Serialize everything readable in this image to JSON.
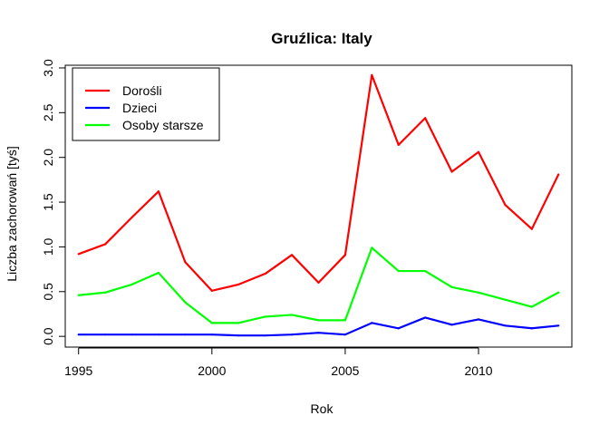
{
  "chart_data": {
    "type": "line",
    "title": "Gruźlica: Italy",
    "xlabel": "Rok",
    "ylabel": "Liczba zachorowań [tyś]",
    "xlim": [
      1994.5,
      2013.5
    ],
    "ylim": [
      -0.12,
      3.03
    ],
    "x_ticks": [
      1995,
      2000,
      2005,
      2010
    ],
    "y_ticks": [
      "0.0",
      "0.5",
      "1.0",
      "1.5",
      "2.0",
      "2.5",
      "3.0"
    ],
    "grid": false,
    "legend_position": "top-left",
    "x": [
      1995,
      1996,
      1997,
      1998,
      1999,
      2000,
      2001,
      2002,
      2003,
      2004,
      2005,
      2006,
      2007,
      2008,
      2009,
      2010,
      2011,
      2012,
      2013
    ],
    "series": [
      {
        "name": "Dorośli",
        "color": "#ff0000",
        "values": [
          0.92,
          1.03,
          1.33,
          1.62,
          0.83,
          0.51,
          0.58,
          0.7,
          0.91,
          0.6,
          0.91,
          2.92,
          2.14,
          2.44,
          1.84,
          2.06,
          1.47,
          1.2,
          1.81
        ]
      },
      {
        "name": "Dzieci",
        "color": "#0000ff",
        "values": [
          0.02,
          0.02,
          0.02,
          0.02,
          0.02,
          0.02,
          0.01,
          0.01,
          0.02,
          0.04,
          0.02,
          0.15,
          0.09,
          0.21,
          0.13,
          0.19,
          0.12,
          0.09,
          0.12
        ]
      },
      {
        "name": "Osoby starsze",
        "color": "#00ff00",
        "values": [
          0.46,
          0.49,
          0.58,
          0.71,
          0.38,
          0.15,
          0.15,
          0.22,
          0.24,
          0.18,
          0.18,
          0.99,
          0.73,
          0.73,
          0.55,
          0.49,
          0.41,
          0.33,
          0.49
        ]
      }
    ]
  }
}
